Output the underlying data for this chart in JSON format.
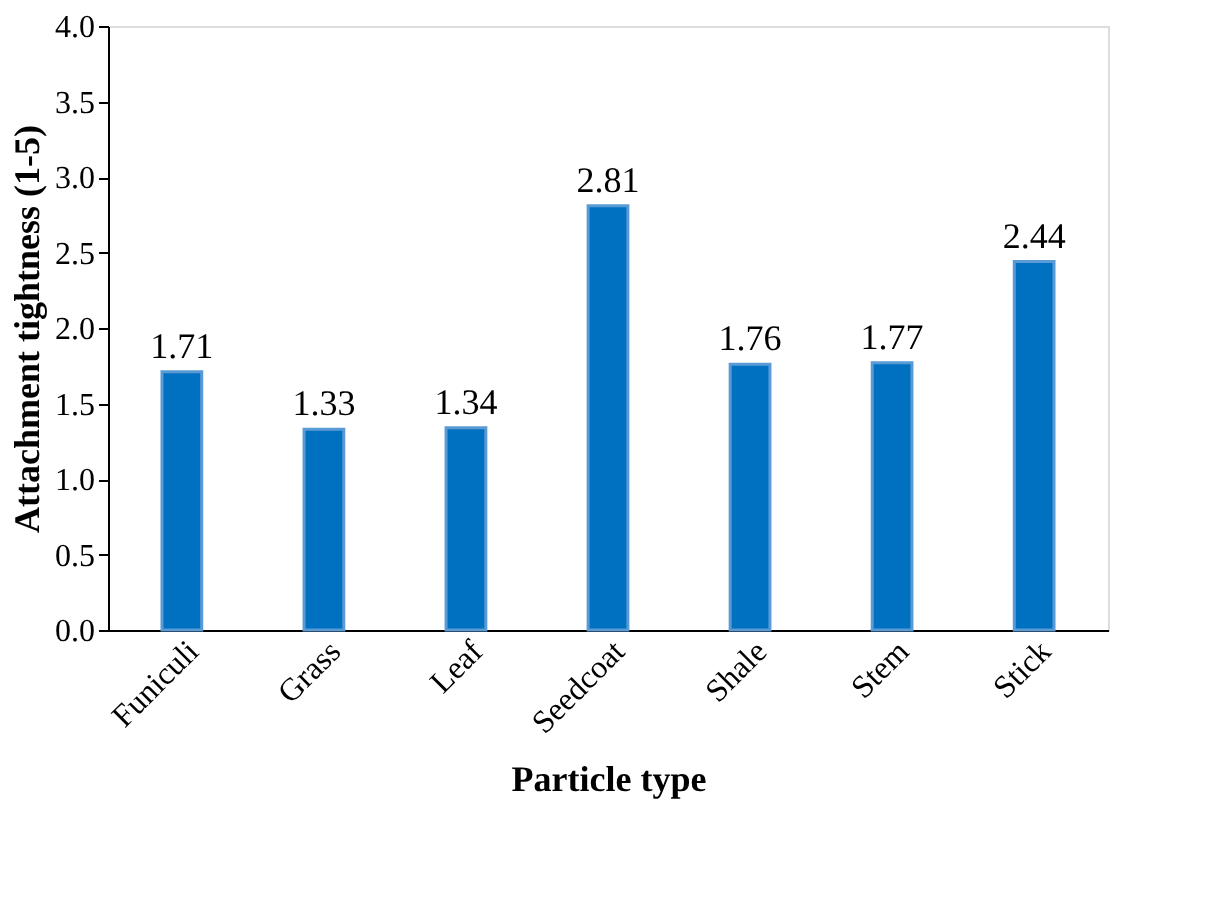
{
  "chart_data": {
    "type": "bar",
    "xlabel": "Particle type",
    "ylabel": "Attachment tightness (1-5)",
    "categories": [
      "Funiculi",
      "Grass",
      "Leaf",
      "Seedcoat",
      "Shale",
      "Stem",
      "Stick"
    ],
    "values": [
      1.71,
      1.33,
      1.34,
      2.81,
      1.76,
      1.77,
      2.44
    ],
    "color": "#0070c0",
    "ylim": [
      0,
      4
    ],
    "yticks": [
      {
        "value": 0,
        "label": "0.0"
      },
      0.5,
      {
        "value": 1,
        "label": "1.0"
      },
      1.5,
      {
        "value": 2,
        "label": "2.0"
      },
      2.5,
      {
        "value": 3,
        "label": "3.0"
      },
      3.5,
      {
        "value": 4,
        "label": "4.0"
      }
    ],
    "grid": false,
    "data_labels": true
  }
}
